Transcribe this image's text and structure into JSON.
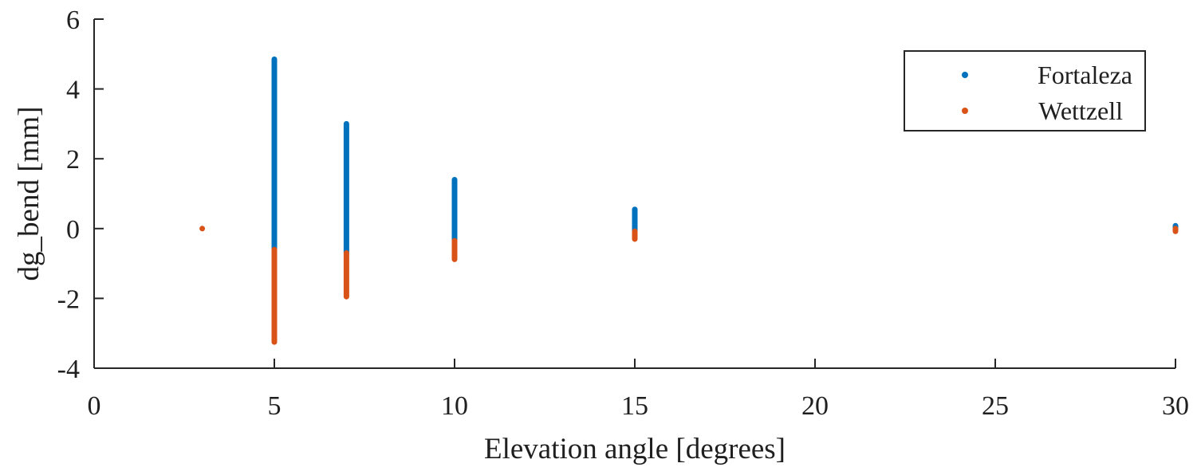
{
  "chart_data": {
    "type": "scatter",
    "title": "",
    "xlabel": "Elevation angle [degrees]",
    "ylabel": "dg_bend [mm]",
    "xlim": [
      0,
      30
    ],
    "ylim": [
      -4,
      6
    ],
    "xticks": [
      0,
      5,
      10,
      15,
      20,
      25,
      30
    ],
    "yticks": [
      -4,
      -2,
      0,
      2,
      4,
      6
    ],
    "grid": false,
    "legend_position": "top-right",
    "series": [
      {
        "name": "Fortaleza",
        "color": "#0072BD",
        "marker": "dot",
        "ranges": [
          {
            "x": 5,
            "ymin": -0.75,
            "ymax": 4.85
          },
          {
            "x": 7,
            "ymin": -0.7,
            "ymax": 3.0
          },
          {
            "x": 10,
            "ymin": -0.35,
            "ymax": 1.4
          },
          {
            "x": 15,
            "ymin": -0.1,
            "ymax": 0.55
          },
          {
            "x": 30,
            "ymin": -0.02,
            "ymax": 0.08
          }
        ]
      },
      {
        "name": "Wettzell",
        "color": "#D95319",
        "marker": "dot",
        "points": [
          {
            "x": 3,
            "y": 0.0
          }
        ],
        "ranges": [
          {
            "x": 5,
            "ymin": -3.25,
            "ymax": -0.6
          },
          {
            "x": 7,
            "ymin": -1.95,
            "ymax": -0.7
          },
          {
            "x": 10,
            "ymin": -0.88,
            "ymax": -0.35
          },
          {
            "x": 15,
            "ymin": -0.3,
            "ymax": -0.08
          },
          {
            "x": 30,
            "ymin": -0.08,
            "ymax": 0.0
          }
        ]
      }
    ]
  }
}
